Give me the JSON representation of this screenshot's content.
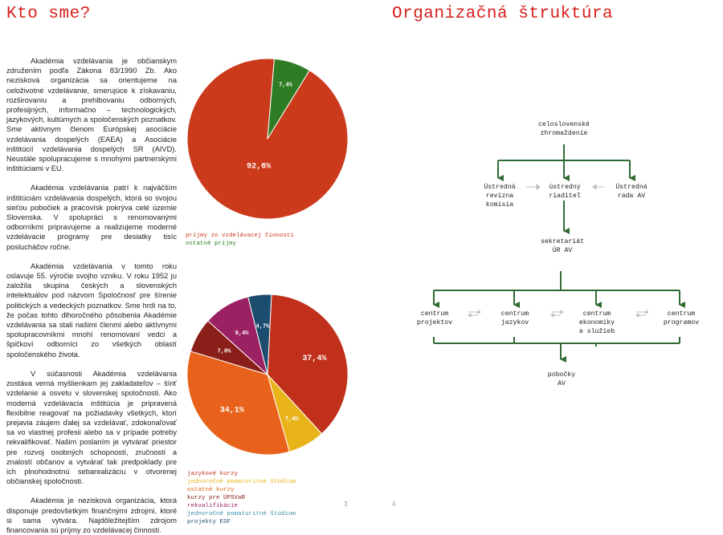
{
  "left_page": {
    "heading": "Kto sme?",
    "paragraphs": [
      "Akadémia vzdelávania je občianskym združením podľa Zákona 83/1990 Zb. Ako nezisková organizácia sa orientujeme na celoživotné vzdelávanie, smerujúce k získavaniu, rozširovaniu a prehlbovaniu odborných, profesijných, informačno – technologických, jazykových, kultúrnych a spoločenských poznatkov. Sme aktívnym členom Európskej asociácie vzdelávania dospelých (EAEA) a Asociácie inštitúcií vzdelávania dospelých SR (AIVD). Neustále spolupracujeme s mnohými partnerskými inštitúciami v EU.",
      "Akadémia vzdelávania patrí k najväčším inštitúciám vzdelávania dospelých, ktorá so svojou sieťou pobočiek a pracovísk pokrýva celé územie Slovenska. V spolupráci s renomovanými odborníkmi pripravujeme a realizujeme moderné vzdelávacie programy pre desiatky tisíc poslucháčov ročne.",
      "Akadémia vzdelávania v tomto roku oslavuje 55. výročie svojho vzniku. V roku 1952 ju založila skupina českých a slovenských intelektuálov pod názvom Spoločnosť pre šírenie politických a vedeckých poznatkov. Sme hrdí na to, že počas tohto dlhoročného pôsobenia Akadémie vzdelávania sa stali našimi členmi alebo aktívnymi spolupracovníkmi mnohí renomovaní vedci a špičkoví odborníci zo všetkých oblastí spoločenského života.",
      "V súčasnosti Akadémia vzdelávania zostáva verná myšlienkam jej zakladateľov – šíriť vzdelanie a osvetu v slovenskej spoločnosti. Ako moderná vzdelávacia inštitúcia je pripravená flexibilne reagovať na požiadavky všetkých, ktorí prejavia záujem ďalej sa vzdelávať, zdokonaľovať sa vo vlastnej profesii alebo sa v prípade potreby rekvalifikovať. Našim poslaním je vytvárať priestor pre rozvoj osobných schopností, zručností a znalostí občanov a vytvárať tak predpoklady pre ich plnohodnotnú sebarealizáciu v otvorenej občianskej spoločnosti.",
      "Akadémia je nezisková organizácia, ktorá disponuje predovšetkým finančnými zdrojmi, ktoré si sama vytvára. Najdôležitejším zdrojom financovania sú príjmy zo vzdelávacej činnosti."
    ],
    "page_number": "3"
  },
  "right_page": {
    "heading": "Organizačná štruktúra",
    "page_number": "4"
  },
  "org_chart": {
    "top": "celoslovenské\nzhromaždenie",
    "left": "Ústredná\nrevízna\nkomisia",
    "center": "ústredný\nriaditeľ",
    "right": "Ústredná\nrada AV",
    "secretariat": "sekretariát\nÚR AV",
    "centers": [
      "centrum\nprojektov",
      "centrum\njazykov",
      "centrum\nekonomiky\na služieb",
      "centrum\nprogramov"
    ],
    "branches": "pobočky\nAV",
    "line_color": "#2f6b32"
  },
  "chart_data": [
    {
      "type": "pie",
      "title": "",
      "slices": [
        {
          "label": "príjmy zo vzdelávacej činnosti",
          "value": 92.6,
          "display": "92,6%",
          "color": "#cc3a1c"
        },
        {
          "label": "ostatné príjmy",
          "value": 7.4,
          "display": "7,4%",
          "color": "#2e7d24"
        }
      ],
      "legend_placement": "bottom-left"
    },
    {
      "type": "pie",
      "title": "",
      "slices": [
        {
          "label": "rekvalifikácie",
          "value": 37.4,
          "display": "37,4%",
          "color": "#c1301a"
        },
        {
          "label": "jednoročné pomaturitné štúdium",
          "value": 7.4,
          "display": "7,4%",
          "color": "#e8b41a"
        },
        {
          "label": "jazykové kurzy",
          "value": 34.1,
          "display": "34,1%",
          "color": "#e8621b"
        },
        {
          "label": "ostatné kurzy",
          "value": 7.0,
          "display": "7,0%",
          "color": "#8a1f1a"
        },
        {
          "label": "kurzy pre ÚPSVaR",
          "value": 9.4,
          "display": "9,4%",
          "color": "#9b2163"
        },
        {
          "label": "projekty ESF",
          "value": 4.7,
          "display": "4,7%",
          "color": "#1d4d6e"
        }
      ],
      "legend_placement": "bottom"
    }
  ]
}
